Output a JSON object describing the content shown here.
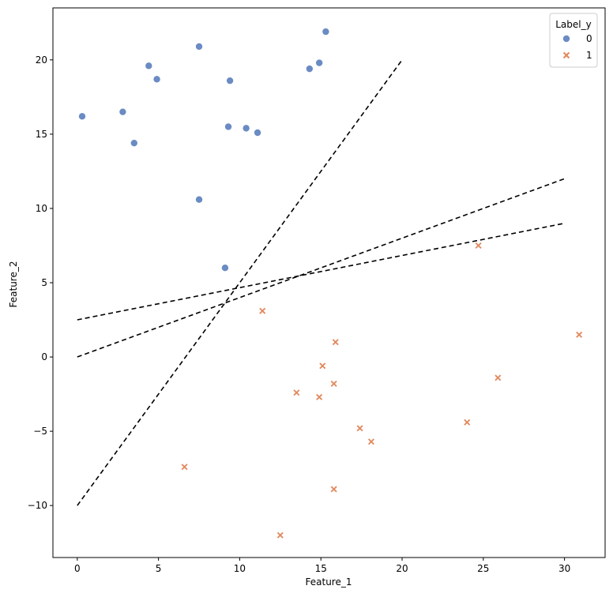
{
  "chart_data": {
    "type": "scatter",
    "title": "",
    "xlabel": "Feature_1",
    "ylabel": "Feature_2",
    "xlim": [
      -1.5,
      32.5
    ],
    "ylim": [
      -13.5,
      23.5
    ],
    "xticks": [
      0,
      5,
      10,
      15,
      20,
      25,
      30
    ],
    "yticks": [
      -10,
      -5,
      0,
      5,
      10,
      15,
      20
    ],
    "xtick_labels": [
      "0",
      "5",
      "10",
      "15",
      "20",
      "25",
      "30"
    ],
    "ytick_labels": [
      "−10",
      "−5",
      "0",
      "5",
      "10",
      "15",
      "20"
    ],
    "legend": {
      "title": "Label_y",
      "position": "top-right",
      "entries": [
        {
          "label": "0",
          "marker": "circle",
          "color": "#6a8bc3"
        },
        {
          "label": "1",
          "marker": "x",
          "color": "#e1895e"
        }
      ]
    },
    "series": [
      {
        "name": "0",
        "marker": "circle",
        "color": "#6a8bc3",
        "points": [
          [
            0.3,
            16.2
          ],
          [
            2.8,
            16.5
          ],
          [
            3.5,
            14.4
          ],
          [
            4.4,
            19.6
          ],
          [
            4.9,
            18.7
          ],
          [
            7.5,
            20.9
          ],
          [
            7.5,
            10.6
          ],
          [
            9.1,
            6.0
          ],
          [
            9.3,
            15.5
          ],
          [
            9.4,
            18.6
          ],
          [
            10.4,
            15.4
          ],
          [
            11.1,
            15.1
          ],
          [
            14.3,
            19.4
          ],
          [
            14.9,
            19.8
          ],
          [
            15.3,
            21.9
          ]
        ]
      },
      {
        "name": "1",
        "marker": "x",
        "color": "#e1895e",
        "points": [
          [
            6.6,
            -7.4
          ],
          [
            11.4,
            3.1
          ],
          [
            12.5,
            -12.0
          ],
          [
            13.5,
            -2.4
          ],
          [
            14.9,
            -2.7
          ],
          [
            15.1,
            -0.6
          ],
          [
            15.8,
            -1.8
          ],
          [
            15.8,
            -8.9
          ],
          [
            15.9,
            1.0
          ],
          [
            17.4,
            -4.8
          ],
          [
            18.1,
            -5.7
          ],
          [
            24.0,
            -4.4
          ],
          [
            24.7,
            7.5
          ],
          [
            25.9,
            -1.4
          ],
          [
            30.9,
            1.5
          ]
        ]
      }
    ],
    "lines": [
      {
        "name": "boundary-1",
        "style": "dashed",
        "color": "#000000",
        "x": [
          0,
          20
        ],
        "y": [
          -10,
          20
        ]
      },
      {
        "name": "boundary-2",
        "style": "dashed",
        "color": "#000000",
        "x": [
          0,
          30
        ],
        "y": [
          0,
          12
        ]
      },
      {
        "name": "boundary-3",
        "style": "dashed",
        "color": "#000000",
        "x": [
          0,
          30
        ],
        "y": [
          2.5,
          9
        ]
      }
    ]
  }
}
